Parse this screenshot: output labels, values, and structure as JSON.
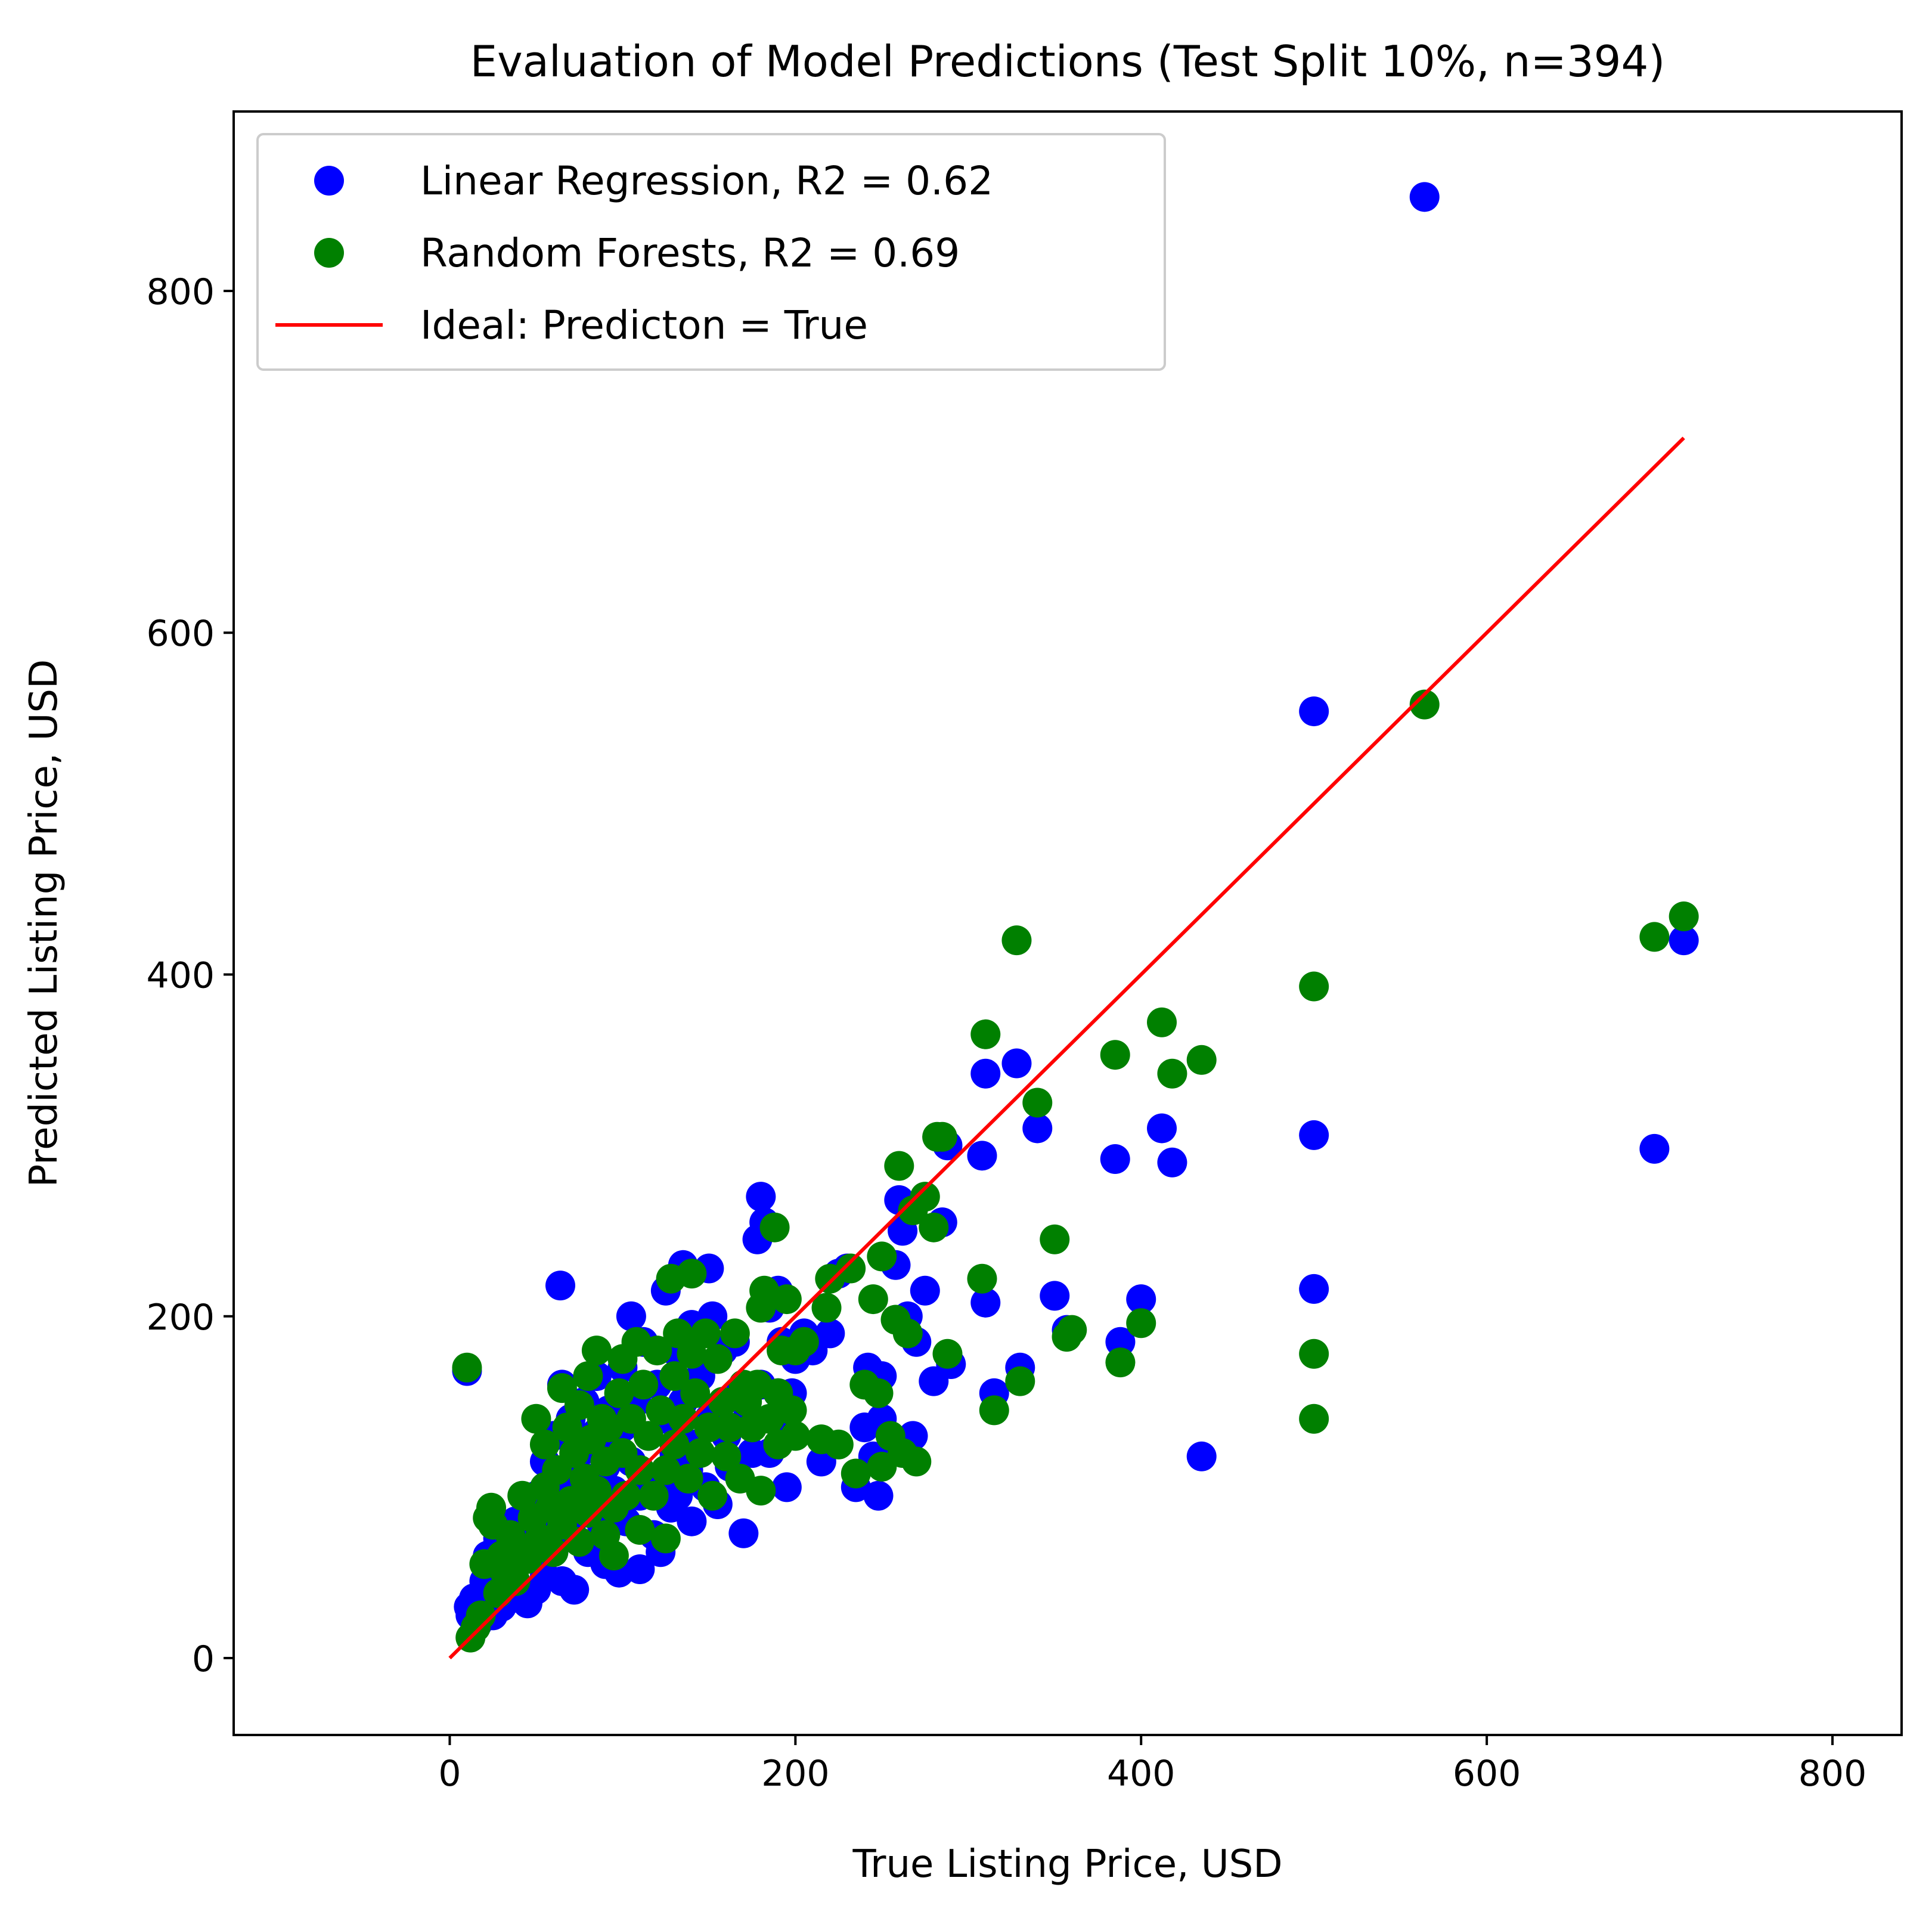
{
  "chart_data": {
    "type": "scatter",
    "title": "Evaluation of Model Predictions (Test Split 10%, n=394)",
    "xlabel": "True Listing Price, USD",
    "ylabel": "Predicted Listing Price, USD",
    "xlim": [
      -125,
      840
    ],
    "ylim": [
      -45,
      905
    ],
    "xticks": [
      0,
      200,
      400,
      600,
      800
    ],
    "yticks": [
      0,
      200,
      400,
      600,
      800
    ],
    "grid": false,
    "legend_position": "top-left",
    "series": [
      {
        "name": "Linear Regression, R2 = 0.62",
        "color": "#0000ff",
        "marker": "circle",
        "points": [
          [
            10,
            168
          ],
          [
            11,
            30
          ],
          [
            12,
            25
          ],
          [
            14,
            35
          ],
          [
            16,
            20
          ],
          [
            18,
            28
          ],
          [
            20,
            45
          ],
          [
            22,
            38
          ],
          [
            22,
            60
          ],
          [
            25,
            25
          ],
          [
            26,
            52
          ],
          [
            28,
            70
          ],
          [
            30,
            42
          ],
          [
            30,
            30
          ],
          [
            32,
            48
          ],
          [
            35,
            62
          ],
          [
            36,
            35
          ],
          [
            38,
            80
          ],
          [
            40,
            58
          ],
          [
            42,
            72
          ],
          [
            45,
            32
          ],
          [
            45,
            88
          ],
          [
            48,
            65
          ],
          [
            50,
            40
          ],
          [
            50,
            95
          ],
          [
            52,
            78
          ],
          [
            55,
            115
          ],
          [
            55,
            48
          ],
          [
            58,
            88
          ],
          [
            60,
            62
          ],
          [
            60,
            130
          ],
          [
            62,
            100
          ],
          [
            64,
            218
          ],
          [
            65,
            160
          ],
          [
            65,
            45
          ],
          [
            68,
            110
          ],
          [
            70,
            75
          ],
          [
            70,
            140
          ],
          [
            72,
            40
          ],
          [
            75,
            95
          ],
          [
            75,
            120
          ],
          [
            78,
            150
          ],
          [
            80,
            62
          ],
          [
            80,
            88
          ],
          [
            82,
            105
          ],
          [
            85,
            132
          ],
          [
            85,
            165
          ],
          [
            88,
            78
          ],
          [
            90,
            112
          ],
          [
            90,
            55
          ],
          [
            92,
            145
          ],
          [
            95,
            98
          ],
          [
            95,
            125
          ],
          [
            98,
            50
          ],
          [
            100,
            135
          ],
          [
            100,
            170
          ],
          [
            102,
            80
          ],
          [
            105,
            200
          ],
          [
            105,
            115
          ],
          [
            108,
            150
          ],
          [
            110,
            52
          ],
          [
            110,
            95
          ],
          [
            112,
            185
          ],
          [
            115,
            130
          ],
          [
            118,
            72
          ],
          [
            120,
            160
          ],
          [
            120,
            105
          ],
          [
            122,
            62
          ],
          [
            125,
            140
          ],
          [
            125,
            215
          ],
          [
            128,
            88
          ],
          [
            130,
            180
          ],
          [
            130,
            120
          ],
          [
            132,
            95
          ],
          [
            135,
            230
          ],
          [
            135,
            150
          ],
          [
            138,
            110
          ],
          [
            140,
            80
          ],
          [
            140,
            195
          ],
          [
            142,
            125
          ],
          [
            145,
            165
          ],
          [
            148,
            100
          ],
          [
            150,
            228
          ],
          [
            150,
            140
          ],
          [
            152,
            200
          ],
          [
            155,
            90
          ],
          [
            158,
            180
          ],
          [
            160,
            130
          ],
          [
            162,
            112
          ],
          [
            165,
            185
          ],
          [
            168,
            155
          ],
          [
            170,
            73
          ],
          [
            172,
            140
          ],
          [
            175,
            120
          ],
          [
            178,
            245
          ],
          [
            180,
            270
          ],
          [
            180,
            160
          ],
          [
            182,
            255
          ],
          [
            185,
            120
          ],
          [
            185,
            205
          ],
          [
            188,
            140
          ],
          [
            190,
            155
          ],
          [
            190,
            215
          ],
          [
            192,
            185
          ],
          [
            195,
            100
          ],
          [
            198,
            155
          ],
          [
            200,
            175
          ],
          [
            205,
            190
          ],
          [
            210,
            180
          ],
          [
            215,
            115
          ],
          [
            220,
            190
          ],
          [
            225,
            225
          ],
          [
            230,
            228
          ],
          [
            235,
            100
          ],
          [
            240,
            135
          ],
          [
            242,
            170
          ],
          [
            245,
            118
          ],
          [
            248,
            95
          ],
          [
            250,
            140
          ],
          [
            250,
            165
          ],
          [
            255,
            120
          ],
          [
            258,
            230
          ],
          [
            260,
            268
          ],
          [
            262,
            250
          ],
          [
            265,
            200
          ],
          [
            268,
            130
          ],
          [
            270,
            185
          ],
          [
            275,
            215
          ],
          [
            280,
            162
          ],
          [
            285,
            255
          ],
          [
            288,
            300
          ],
          [
            290,
            172
          ],
          [
            308,
            294
          ],
          [
            310,
            342
          ],
          [
            310,
            208
          ],
          [
            315,
            155
          ],
          [
            328,
            348
          ],
          [
            330,
            170
          ],
          [
            340,
            310
          ],
          [
            350,
            212
          ],
          [
            357,
            192
          ],
          [
            385,
            292
          ],
          [
            388,
            185
          ],
          [
            400,
            210
          ],
          [
            412,
            310
          ],
          [
            418,
            290
          ],
          [
            435,
            118
          ],
          [
            500,
            554
          ],
          [
            500,
            306
          ],
          [
            500,
            216
          ],
          [
            564,
            855
          ],
          [
            697,
            298
          ],
          [
            714,
            420
          ]
        ]
      },
      {
        "name": "Random Forests, R2 = 0.69",
        "color": "#008000",
        "marker": "circle",
        "points": [
          [
            10,
            170
          ],
          [
            12,
            12
          ],
          [
            15,
            18
          ],
          [
            18,
            25
          ],
          [
            20,
            55
          ],
          [
            22,
            82
          ],
          [
            24,
            88
          ],
          [
            25,
            78
          ],
          [
            28,
            38
          ],
          [
            30,
            60
          ],
          [
            32,
            50
          ],
          [
            35,
            72
          ],
          [
            38,
            45
          ],
          [
            40,
            65
          ],
          [
            42,
            95
          ],
          [
            45,
            58
          ],
          [
            48,
            82
          ],
          [
            50,
            140
          ],
          [
            52,
            70
          ],
          [
            55,
            100
          ],
          [
            55,
            125
          ],
          [
            58,
            88
          ],
          [
            60,
            62
          ],
          [
            62,
            110
          ],
          [
            65,
            158
          ],
          [
            65,
            78
          ],
          [
            68,
            135
          ],
          [
            70,
            92
          ],
          [
            72,
            120
          ],
          [
            75,
            68
          ],
          [
            75,
            148
          ],
          [
            78,
            105
          ],
          [
            80,
            165
          ],
          [
            80,
            85
          ],
          [
            82,
            128
          ],
          [
            85,
            98
          ],
          [
            85,
            180
          ],
          [
            88,
            140
          ],
          [
            90,
            72
          ],
          [
            90,
            115
          ],
          [
            92,
            135
          ],
          [
            95,
            88
          ],
          [
            95,
            60
          ],
          [
            98,
            155
          ],
          [
            100,
            120
          ],
          [
            100,
            175
          ],
          [
            102,
            95
          ],
          [
            105,
            140
          ],
          [
            108,
            185
          ],
          [
            110,
            110
          ],
          [
            110,
            75
          ],
          [
            112,
            160
          ],
          [
            115,
            130
          ],
          [
            118,
            95
          ],
          [
            120,
            180
          ],
          [
            122,
            145
          ],
          [
            125,
            110
          ],
          [
            125,
            70
          ],
          [
            128,
            222
          ],
          [
            130,
            165
          ],
          [
            130,
            125
          ],
          [
            132,
            190
          ],
          [
            135,
            140
          ],
          [
            138,
            105
          ],
          [
            140,
            225
          ],
          [
            140,
            178
          ],
          [
            142,
            155
          ],
          [
            145,
            120
          ],
          [
            148,
            190
          ],
          [
            150,
            135
          ],
          [
            152,
            95
          ],
          [
            155,
            175
          ],
          [
            158,
            150
          ],
          [
            160,
            118
          ],
          [
            162,
            135
          ],
          [
            165,
            190
          ],
          [
            168,
            105
          ],
          [
            170,
            160
          ],
          [
            172,
            150
          ],
          [
            175,
            135
          ],
          [
            178,
            160
          ],
          [
            180,
            205
          ],
          [
            180,
            98
          ],
          [
            182,
            215
          ],
          [
            185,
            140
          ],
          [
            188,
            252
          ],
          [
            190,
            155
          ],
          [
            190,
            125
          ],
          [
            192,
            180
          ],
          [
            195,
            210
          ],
          [
            198,
            145
          ],
          [
            200,
            130
          ],
          [
            200,
            180
          ],
          [
            205,
            185
          ],
          [
            215,
            128
          ],
          [
            218,
            205
          ],
          [
            220,
            222
          ],
          [
            225,
            125
          ],
          [
            232,
            228
          ],
          [
            235,
            108
          ],
          [
            240,
            160
          ],
          [
            245,
            210
          ],
          [
            248,
            155
          ],
          [
            250,
            235
          ],
          [
            250,
            112
          ],
          [
            255,
            130
          ],
          [
            258,
            198
          ],
          [
            260,
            288
          ],
          [
            262,
            120
          ],
          [
            265,
            190
          ],
          [
            268,
            262
          ],
          [
            270,
            115
          ],
          [
            275,
            270
          ],
          [
            280,
            252
          ],
          [
            282,
            305
          ],
          [
            285,
            305
          ],
          [
            288,
            178
          ],
          [
            308,
            222
          ],
          [
            310,
            365
          ],
          [
            315,
            145
          ],
          [
            328,
            420
          ],
          [
            330,
            162
          ],
          [
            340,
            325
          ],
          [
            350,
            245
          ],
          [
            357,
            188
          ],
          [
            360,
            192
          ],
          [
            385,
            353
          ],
          [
            388,
            173
          ],
          [
            400,
            196
          ],
          [
            412,
            372
          ],
          [
            418,
            342
          ],
          [
            435,
            350
          ],
          [
            500,
            393
          ],
          [
            500,
            178
          ],
          [
            500,
            140
          ],
          [
            564,
            558
          ],
          [
            697,
            422
          ],
          [
            714,
            434
          ]
        ]
      },
      {
        "name": "Ideal: Predicton = True",
        "color": "#ff0000",
        "marker": "line",
        "points": [
          [
            0,
            0
          ],
          [
            714,
            714
          ]
        ]
      }
    ]
  }
}
